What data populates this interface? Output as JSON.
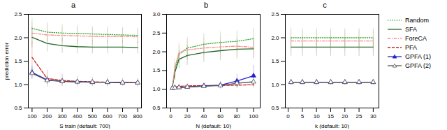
{
  "chart_data": [
    {
      "type": "line",
      "title": "a",
      "xlabel": "S train (default: 700)",
      "ylabel": "prediction error",
      "x": [
        100,
        200,
        300,
        400,
        500,
        600,
        700,
        800
      ],
      "xlim": [
        75,
        825
      ],
      "xticks": [
        100,
        200,
        300,
        400,
        500,
        600,
        700,
        800
      ],
      "ylim": [
        0.5,
        2.5
      ],
      "yticks": [
        0.5,
        {
          "value": 1,
          "label": "1.0"
        },
        1.5,
        {
          "value": 2,
          "label": "2.0"
        },
        2.5
      ],
      "grid": false,
      "series": [
        {
          "name": "Random",
          "color": "#33aa33",
          "line_style": "dotted",
          "values": [
            2.2,
            2.12,
            2.1,
            2.09,
            2.08,
            2.07,
            2.06,
            2.05
          ],
          "errors": [
            0.22,
            0.2,
            0.18,
            0.17,
            0.16,
            0.16,
            0.16,
            0.16
          ]
        },
        {
          "name": "SFA",
          "color": "#226622",
          "line_style": "solid",
          "values": [
            2.01,
            1.88,
            1.83,
            1.81,
            1.8,
            1.8,
            1.8,
            1.79
          ],
          "errors": [
            0.22,
            0.18,
            0.16,
            0.15,
            0.14,
            0.14,
            0.14,
            0.13
          ]
        },
        {
          "name": "ForeCA",
          "color": "#ff8888",
          "line_style": "dashdot",
          "values": [
            2.1,
            2.06,
            2.05,
            2.04,
            2.03,
            2.03,
            2.03,
            2.02
          ],
          "errors": [
            0.24,
            0.2,
            0.18,
            0.18,
            0.17,
            0.17,
            0.17,
            0.16
          ]
        },
        {
          "name": "PFA",
          "color": "#cc2222",
          "line_style": "dashed",
          "values": [
            1.58,
            1.13,
            1.09,
            1.07,
            1.06,
            1.05,
            1.05,
            1.04
          ],
          "errors": [
            0.35,
            0.18,
            0.13,
            0.11,
            0.1,
            0.1,
            0.09,
            0.09
          ]
        },
        {
          "name": "GPFA (1)",
          "color": "#2222cc",
          "line_style": "solid",
          "marker": "triangle",
          "values": [
            1.26,
            1.1,
            1.07,
            1.06,
            1.05,
            1.05,
            1.04,
            1.04
          ],
          "errors": [
            0.14,
            0.09,
            0.07,
            0.06,
            0.05,
            0.05,
            0.05,
            0.04
          ]
        },
        {
          "name": "GPFA (2)",
          "color": "#555555",
          "line_style": "solid",
          "marker": "triangle-open",
          "values": [
            1.24,
            1.09,
            1.07,
            1.06,
            1.05,
            1.05,
            1.04,
            1.04
          ],
          "errors": [
            0.12,
            0.08,
            0.06,
            0.05,
            0.05,
            0.05,
            0.04,
            0.04
          ]
        }
      ]
    },
    {
      "type": "line",
      "title": "b",
      "xlabel": "N (default: 10)",
      "x": [
        2,
        5,
        10,
        20,
        40,
        60,
        80,
        100
      ],
      "xlim": [
        -5,
        108
      ],
      "xticks": [
        0,
        20,
        40,
        60,
        80,
        100
      ],
      "ylim": [
        0.5,
        3.0
      ],
      "yticks": [
        0.5,
        {
          "value": 1,
          "label": "1.0"
        },
        1.5,
        {
          "value": 2,
          "label": "2.0"
        },
        2.5,
        {
          "value": 3,
          "label": "3.0"
        }
      ],
      "grid": false,
      "series": [
        {
          "name": "Random",
          "color": "#33aa33",
          "line_style": "dotted",
          "values": [
            1.06,
            1.52,
            1.93,
            2.1,
            2.2,
            2.25,
            2.28,
            2.35
          ],
          "errors": [
            0.06,
            0.22,
            0.26,
            0.28,
            0.28,
            0.28,
            0.28,
            0.28
          ]
        },
        {
          "name": "SFA",
          "color": "#226622",
          "line_style": "solid",
          "values": [
            1.06,
            1.45,
            1.8,
            1.9,
            1.98,
            2.03,
            2.07,
            2.08
          ],
          "errors": [
            0.06,
            0.2,
            0.24,
            0.26,
            0.26,
            0.26,
            0.26,
            0.26
          ]
        },
        {
          "name": "ForeCA",
          "color": "#ff8888",
          "line_style": "dashdot",
          "values": [
            1.06,
            1.58,
            1.98,
            2.05,
            2.1,
            2.13,
            2.15,
            2.12
          ],
          "errors": [
            0.06,
            0.24,
            0.28,
            0.28,
            0.28,
            0.28,
            0.28,
            0.28
          ]
        },
        {
          "name": "PFA",
          "color": "#cc2222",
          "line_style": "dashed",
          "values": [
            1.04,
            1.06,
            1.08,
            1.09,
            1.1,
            1.1,
            1.11,
            1.12
          ],
          "errors": [
            0.04,
            0.05,
            0.06,
            0.06,
            0.07,
            0.07,
            0.08,
            0.08
          ]
        },
        {
          "name": "GPFA (1)",
          "color": "#2222cc",
          "line_style": "solid",
          "marker": "triangle",
          "values": [
            1.03,
            1.04,
            1.05,
            1.06,
            1.09,
            1.11,
            1.22,
            1.36
          ],
          "errors": [
            0.03,
            0.04,
            0.04,
            0.05,
            0.07,
            0.1,
            0.18,
            0.28
          ]
        },
        {
          "name": "GPFA (2)",
          "color": "#555555",
          "line_style": "solid",
          "marker": "triangle-open",
          "values": [
            1.03,
            1.04,
            1.05,
            1.06,
            1.08,
            1.1,
            1.16,
            1.2
          ],
          "errors": [
            0.03,
            0.04,
            0.04,
            0.05,
            0.06,
            0.07,
            0.1,
            0.12
          ]
        }
      ]
    },
    {
      "type": "line",
      "title": "c",
      "xlabel": "k (default: 10)",
      "x": [
        1,
        5,
        10,
        15,
        20,
        25,
        30
      ],
      "xlim": [
        -1,
        32
      ],
      "xticks": [
        0,
        5,
        10,
        15,
        20,
        25,
        30
      ],
      "ylim": [
        0.5,
        2.5
      ],
      "yticks": [
        0.5,
        {
          "value": 1,
          "label": "1.0"
        },
        1.5,
        {
          "value": 2,
          "label": "2.0"
        },
        2.5
      ],
      "grid": false,
      "legend": "upper right",
      "series": [
        {
          "name": "Random",
          "color": "#33aa33",
          "line_style": "dotted",
          "values": [
            2.0,
            2.0,
            2.0,
            2.0,
            2.0,
            2.0,
            2.0
          ],
          "errors": [
            0.2,
            0.2,
            0.2,
            0.2,
            0.2,
            0.2,
            0.2
          ]
        },
        {
          "name": "SFA",
          "color": "#226622",
          "line_style": "solid",
          "values": [
            1.8,
            1.8,
            1.8,
            1.8,
            1.8,
            1.8,
            1.8
          ],
          "errors": [
            0.2,
            0.2,
            0.2,
            0.2,
            0.2,
            0.2,
            0.2
          ]
        },
        {
          "name": "ForeCA",
          "color": "#ff8888",
          "line_style": "dashdot",
          "values": [
            1.93,
            1.93,
            1.93,
            1.93,
            1.93,
            1.93,
            1.93
          ],
          "errors": [
            0.22,
            0.22,
            0.22,
            0.22,
            0.22,
            0.22,
            0.22
          ]
        },
        {
          "name": "PFA",
          "color": "#cc2222",
          "line_style": "dashed",
          "values": [
            1.05,
            1.05,
            1.05,
            1.05,
            1.05,
            1.05,
            1.05
          ],
          "errors": [
            0.06,
            0.06,
            0.06,
            0.06,
            0.06,
            0.06,
            0.06
          ]
        },
        {
          "name": "GPFA (1)",
          "color": "#2222cc",
          "line_style": "solid",
          "marker": "triangle",
          "values": [
            1.05,
            1.05,
            1.05,
            1.05,
            1.05,
            1.05,
            1.05
          ],
          "errors": [
            0.05,
            0.05,
            0.05,
            0.05,
            0.05,
            0.05,
            0.05
          ]
        },
        {
          "name": "GPFA (2)",
          "color": "#555555",
          "line_style": "solid",
          "marker": "triangle-open",
          "values": [
            1.05,
            1.05,
            1.05,
            1.05,
            1.05,
            1.05,
            1.05
          ],
          "errors": [
            0.04,
            0.04,
            0.04,
            0.04,
            0.04,
            0.04,
            0.04
          ]
        }
      ]
    }
  ]
}
